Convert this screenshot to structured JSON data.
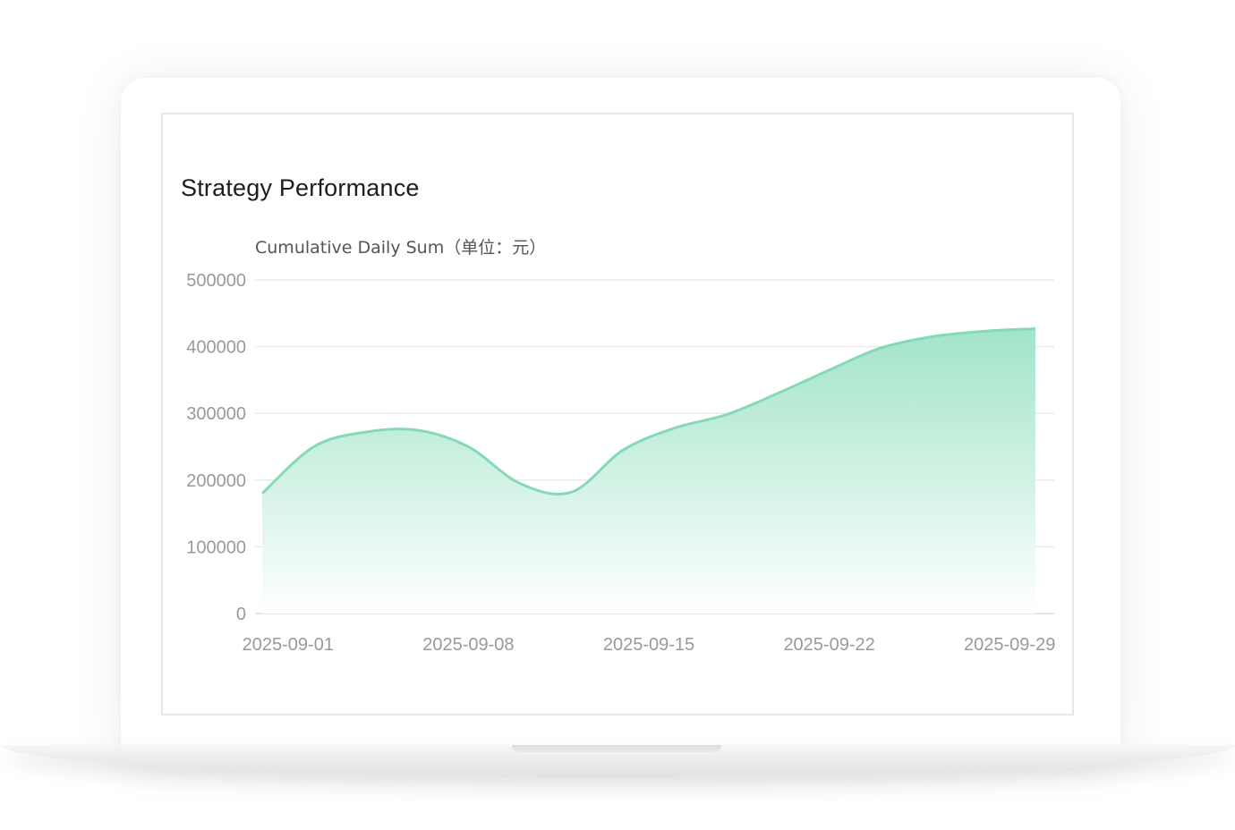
{
  "chart_data": {
    "type": "area",
    "title": "Strategy Performance",
    "ylabel": "Cumulative Daily Sum（单位：元）",
    "xlabel": "",
    "x_ticks": [
      "2025-09-01",
      "2025-09-08",
      "2025-09-15",
      "2025-09-22",
      "2025-09-29"
    ],
    "y_ticks": [
      "0",
      "100000",
      "200000",
      "300000",
      "400000",
      "500000"
    ],
    "ylim": [
      0,
      500000
    ],
    "grid": true,
    "legend": "none",
    "colors": {
      "line": "#86d9b8",
      "fill_top": "#9de3c6",
      "fill_bottom": "#ffffff"
    },
    "series": [
      {
        "x": [
          "2025-08-31",
          "2025-09-02",
          "2025-09-04",
          "2025-09-06",
          "2025-09-08",
          "2025-09-10",
          "2025-09-12",
          "2025-09-14",
          "2025-09-16",
          "2025-09-18",
          "2025-09-20",
          "2025-09-22",
          "2025-09-24",
          "2025-09-26",
          "2025-09-28",
          "2025-09-30"
        ],
        "values": [
          180000,
          250000,
          272000,
          275000,
          250000,
          195000,
          182000,
          245000,
          278000,
          298000,
          330000,
          365000,
          398000,
          415000,
          423000,
          427000
        ]
      }
    ]
  }
}
